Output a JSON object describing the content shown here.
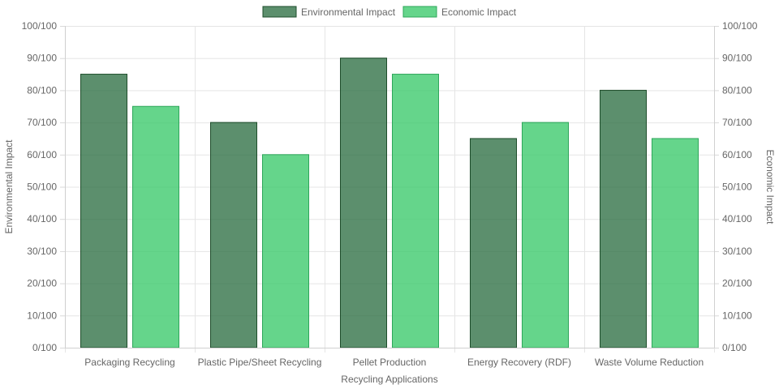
{
  "chart_data": {
    "type": "bar",
    "categories": [
      "Packaging Recycling",
      "Plastic Pipe/Sheet Recycling",
      "Pellet Production",
      "Energy Recovery (RDF)",
      "Waste Volume Reduction"
    ],
    "series": [
      {
        "name": "Environmental Impact",
        "values": [
          85,
          70,
          90,
          65,
          80
        ],
        "fill": "#2e7044",
        "stroke": "#1e4d2b",
        "axis": "left"
      },
      {
        "name": "Economic Impact",
        "values": [
          75,
          60,
          85,
          70,
          65
        ],
        "fill": "#3ecb6e",
        "stroke": "#2ea65a",
        "axis": "right"
      }
    ],
    "xlabel": "Recycling Applications",
    "ylabel_left": "Environmental Impact",
    "ylabel_right": "Economic Impact",
    "ylim": [
      0,
      100
    ],
    "ytick_step": 10,
    "ytick_suffix": "/100",
    "grid": true,
    "legend_position": "top"
  }
}
